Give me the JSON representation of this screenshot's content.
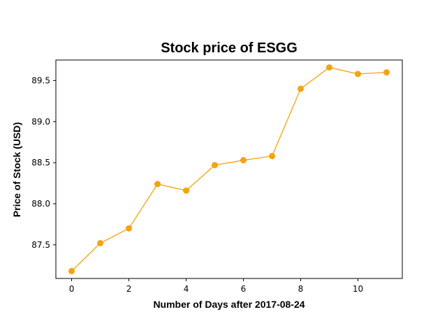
{
  "chart_data": {
    "type": "line",
    "title": "Stock price of ESGG",
    "xlabel": "Number of Days after 2017-08-24",
    "ylabel": "Price of Stock (USD)",
    "x": [
      0,
      1,
      2,
      3,
      4,
      5,
      6,
      7,
      8,
      9,
      10,
      11
    ],
    "series": [
      {
        "values": [
          87.18,
          87.52,
          87.7,
          88.24,
          88.16,
          88.47,
          88.53,
          88.58,
          89.4,
          89.66,
          89.58,
          89.6
        ],
        "color": "#f5a30f",
        "marker": "circle"
      }
    ],
    "xlim": [
      -0.55,
      11.55
    ],
    "ylim": [
      87.09,
      89.75
    ],
    "xticks": [
      0,
      2,
      4,
      6,
      8,
      10
    ],
    "yticks": [
      87.5,
      88.0,
      88.5,
      89.0,
      89.5
    ],
    "ytick_labels": [
      "87.5",
      "88.0",
      "88.5",
      "89.0",
      "89.5"
    ],
    "grid": false,
    "legend": "none"
  }
}
